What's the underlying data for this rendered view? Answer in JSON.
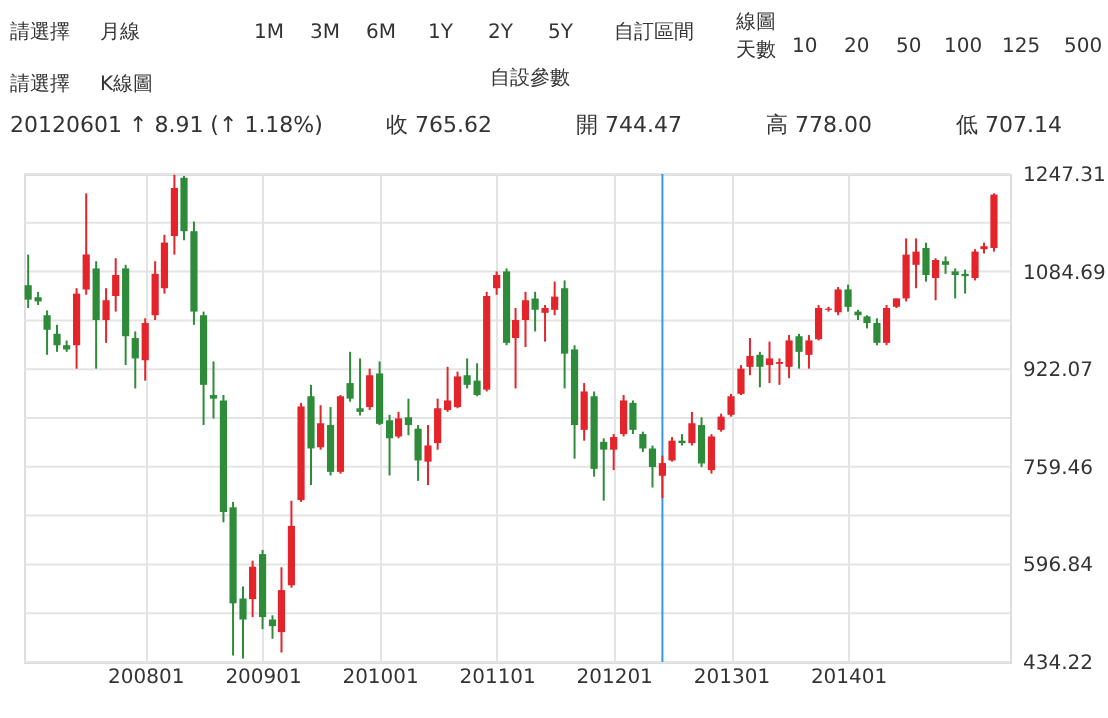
{
  "chart_data": {
    "type": "candlestick",
    "x": [
      "2007-01",
      "2007-02",
      "2007-03",
      "2007-04",
      "2007-05",
      "2007-06",
      "2007-07",
      "2007-08",
      "2007-09",
      "2007-10",
      "2007-11",
      "2007-12",
      "2008-01",
      "2008-02",
      "2008-03",
      "2008-04",
      "2008-05",
      "2008-06",
      "2008-07",
      "2008-08",
      "2008-09",
      "2008-10",
      "2008-11",
      "2008-12",
      "2009-01",
      "2009-02",
      "2009-03",
      "2009-04",
      "2009-05",
      "2009-06",
      "2009-07",
      "2009-08",
      "2009-09",
      "2009-10",
      "2009-11",
      "2009-12",
      "2010-01",
      "2010-02",
      "2010-03",
      "2010-04",
      "2010-05",
      "2010-06",
      "2010-07",
      "2010-08",
      "2010-09",
      "2010-10",
      "2010-11",
      "2010-12",
      "2011-01",
      "2011-02",
      "2011-03",
      "2011-04",
      "2011-05",
      "2011-06",
      "2011-07",
      "2011-08",
      "2011-09",
      "2011-10",
      "2011-11",
      "2011-12",
      "2012-01",
      "2012-02",
      "2012-03",
      "2012-04",
      "2012-05",
      "2012-06",
      "2012-07",
      "2012-08",
      "2012-09",
      "2012-10",
      "2012-11",
      "2012-12",
      "2013-01",
      "2013-02",
      "2013-03",
      "2013-04",
      "2013-05",
      "2013-06",
      "2013-07",
      "2013-08",
      "2013-09",
      "2013-10",
      "2013-11",
      "2013-12",
      "2014-01",
      "2014-02",
      "2014-03",
      "2014-04",
      "2014-05",
      "2014-06",
      "2014-07",
      "2014-08",
      "2014-09",
      "2014-10",
      "2014-11",
      "2014-12",
      "2015-01",
      "2015-02",
      "2015-03",
      "2015-04"
    ],
    "ohlc": [
      [
        1062,
        1113,
        1024,
        1038
      ],
      [
        1042,
        1051,
        1029,
        1035
      ],
      [
        1012,
        1020,
        946,
        988
      ],
      [
        981,
        996,
        951,
        962
      ],
      [
        962,
        970,
        951,
        955
      ],
      [
        962,
        1057,
        923,
        1048
      ],
      [
        1055,
        1215,
        1046,
        1113
      ],
      [
        1090,
        1102,
        923,
        1004
      ],
      [
        1004,
        1057,
        966,
        1037
      ],
      [
        1044,
        1107,
        1018,
        1079
      ],
      [
        1090,
        1096,
        929,
        977
      ],
      [
        974,
        985,
        890,
        940
      ],
      [
        937,
        1007,
        903,
        999
      ],
      [
        1012,
        1102,
        1004,
        1081
      ],
      [
        1057,
        1146,
        1048,
        1133
      ],
      [
        1144,
        1246,
        1113,
        1224
      ],
      [
        1241,
        1244,
        1137,
        1152
      ],
      [
        1152,
        1168,
        996,
        1018
      ],
      [
        1012,
        1018,
        829,
        896
      ],
      [
        879,
        935,
        840,
        873
      ],
      [
        870,
        879,
        667,
        684
      ],
      [
        692,
        701,
        445,
        532
      ],
      [
        540,
        560,
        440,
        505
      ],
      [
        539,
        603,
        509,
        593
      ],
      [
        614,
        621,
        489,
        509
      ],
      [
        505,
        512,
        473,
        494
      ],
      [
        484,
        592,
        450,
        554
      ],
      [
        562,
        703,
        558,
        661
      ],
      [
        704,
        866,
        701,
        860
      ],
      [
        877,
        896,
        729,
        790
      ],
      [
        792,
        862,
        788,
        832
      ],
      [
        829,
        859,
        745,
        751
      ],
      [
        751,
        879,
        748,
        877
      ],
      [
        899,
        951,
        868,
        873
      ],
      [
        857,
        940,
        845,
        851
      ],
      [
        859,
        923,
        854,
        912
      ],
      [
        915,
        935,
        829,
        831
      ],
      [
        837,
        846,
        745,
        807
      ],
      [
        810,
        851,
        807,
        840
      ],
      [
        842,
        873,
        812,
        829
      ],
      [
        823,
        829,
        736,
        770
      ],
      [
        768,
        829,
        729,
        795
      ],
      [
        799,
        873,
        788,
        857
      ],
      [
        854,
        926,
        851,
        870
      ],
      [
        859,
        918,
        857,
        910
      ],
      [
        912,
        940,
        890,
        896
      ],
      [
        903,
        932,
        877,
        879
      ],
      [
        888,
        1051,
        885,
        1044
      ],
      [
        1057,
        1085,
        1046,
        1079
      ],
      [
        1085,
        1090,
        962,
        966
      ],
      [
        974,
        1024,
        890,
        1004
      ],
      [
        1004,
        1051,
        959,
        1037
      ],
      [
        1040,
        1051,
        985,
        1021
      ],
      [
        1016,
        1029,
        968,
        1024
      ],
      [
        1021,
        1068,
        1012,
        1043
      ],
      [
        1057,
        1070,
        890,
        948
      ],
      [
        955,
        962,
        773,
        829
      ],
      [
        821,
        899,
        803,
        885
      ],
      [
        877,
        885,
        743,
        756
      ],
      [
        801,
        807,
        703,
        788
      ],
      [
        788,
        814,
        754,
        809
      ],
      [
        814,
        879,
        810,
        870
      ],
      [
        866,
        870,
        814,
        821
      ],
      [
        814,
        818,
        784,
        790
      ],
      [
        790,
        795,
        725,
        759
      ],
      [
        744.47,
        778.0,
        707.14,
        765.62
      ],
      [
        770,
        809,
        768,
        803
      ],
      [
        803,
        814,
        795,
        799
      ],
      [
        799,
        851,
        795,
        832
      ],
      [
        829,
        842,
        759,
        765
      ],
      [
        754,
        814,
        748,
        810
      ],
      [
        821,
        848,
        818,
        843
      ],
      [
        846,
        881,
        843,
        877
      ],
      [
        881,
        929,
        879,
        923
      ],
      [
        926,
        974,
        912,
        944
      ],
      [
        946,
        951,
        892,
        926
      ],
      [
        929,
        968,
        899,
        940
      ],
      [
        931,
        940,
        896,
        934
      ],
      [
        926,
        979,
        907,
        970
      ],
      [
        977,
        981,
        923,
        951
      ],
      [
        946,
        979,
        923,
        970
      ],
      [
        972,
        1029,
        970,
        1024
      ],
      [
        1021,
        1026,
        1018,
        1023
      ],
      [
        1017,
        1059,
        1012,
        1055
      ],
      [
        1055,
        1063,
        1018,
        1026
      ],
      [
        1018,
        1021,
        1004,
        1012
      ],
      [
        1010,
        1012,
        990,
        999
      ],
      [
        999,
        1007,
        962,
        966
      ],
      [
        966,
        1029,
        962,
        1024
      ],
      [
        1026,
        1040,
        1024,
        1040
      ],
      [
        1040,
        1140,
        1035,
        1113
      ],
      [
        1096,
        1140,
        1057,
        1118
      ],
      [
        1124,
        1133,
        1068,
        1079
      ],
      [
        1074,
        1107,
        1037,
        1104
      ],
      [
        1102,
        1110,
        1081,
        1096
      ],
      [
        1085,
        1090,
        1040,
        1079
      ],
      [
        1081,
        1088,
        1048,
        1077
      ],
      [
        1074,
        1122,
        1070,
        1118
      ],
      [
        1122,
        1133,
        1115,
        1127
      ],
      [
        1124,
        1215,
        1118,
        1213
      ]
    ],
    "colors": [
      "#2e8b3a",
      "#2e8b3a",
      "#2e8b3a",
      "#2e8b3a",
      "#2e8b3a",
      "#e3242b",
      "#e3242b",
      "#2e8b3a",
      "#e3242b",
      "#e3242b",
      "#2e8b3a",
      "#2e8b3a",
      "#e3242b",
      "#e3242b",
      "#e3242b",
      "#e3242b",
      "#2e8b3a",
      "#2e8b3a",
      "#2e8b3a",
      "#2e8b3a",
      "#2e8b3a",
      "#2e8b3a",
      "#2e8b3a",
      "#e3242b",
      "#2e8b3a",
      "#2e8b3a",
      "#e3242b",
      "#e3242b",
      "#e3242b",
      "#2e8b3a",
      "#e3242b",
      "#2e8b3a",
      "#e3242b",
      "#2e8b3a",
      "#2e8b3a",
      "#e3242b",
      "#2e8b3a",
      "#2e8b3a",
      "#e3242b",
      "#2e8b3a",
      "#2e8b3a",
      "#e3242b",
      "#e3242b",
      "#e3242b",
      "#e3242b",
      "#2e8b3a",
      "#2e8b3a",
      "#e3242b",
      "#e3242b",
      "#2e8b3a",
      "#e3242b",
      "#e3242b",
      "#2e8b3a",
      "#e3242b",
      "#e3242b",
      "#2e8b3a",
      "#2e8b3a",
      "#e3242b",
      "#2e8b3a",
      "#2e8b3a",
      "#e3242b",
      "#e3242b",
      "#2e8b3a",
      "#2e8b3a",
      "#2e8b3a",
      "#e3242b",
      "#e3242b",
      "#2e8b3a",
      "#e3242b",
      "#2e8b3a",
      "#e3242b",
      "#e3242b",
      "#e3242b",
      "#e3242b",
      "#e3242b",
      "#2e8b3a",
      "#e3242b",
      "#e3242b",
      "#e3242b",
      "#2e8b3a",
      "#e3242b",
      "#e3242b",
      "#e3242b",
      "#e3242b",
      "#2e8b3a",
      "#2e8b3a",
      "#2e8b3a",
      "#2e8b3a",
      "#e3242b",
      "#e3242b",
      "#e3242b",
      "#e3242b",
      "#2e8b3a",
      "#e3242b",
      "#2e8b3a",
      "#2e8b3a",
      "#2e8b3a",
      "#e3242b",
      "#e3242b",
      "#e3242b"
    ],
    "xlim": [
      "2006-12-19",
      "2015-05-21"
    ],
    "xticks": [
      {
        "value": "2008-01",
        "label": "200801"
      },
      {
        "value": "2009-01",
        "label": "200901"
      },
      {
        "value": "2010-01",
        "label": "201001"
      },
      {
        "value": "2011-01",
        "label": "201101"
      },
      {
        "value": "2012-01",
        "label": "201201"
      },
      {
        "value": "2013-01",
        "label": "201301"
      },
      {
        "value": "2014-01",
        "label": "201401"
      }
    ],
    "ylim": [
      434.22,
      1247.31
    ],
    "yticks": [
      434.22,
      {
        "value": 515.53,
        "label": null
      },
      596.84,
      {
        "value": 678.15,
        "label": null
      },
      759.46,
      {
        "value": 840.77,
        "label": null
      },
      922.07,
      {
        "value": 1003.38,
        "label": null
      },
      1084.69,
      {
        "value": 1166.0,
        "label": null
      },
      1247.31
    ],
    "grid": true,
    "ref_lines": [
      {
        "axis": "x",
        "value": "2012-06",
        "color": "#3399ee"
      }
    ],
    "annotations": [
      "請選擇",
      "月線",
      "1M",
      "3M",
      "6M",
      "1Y",
      "2Y",
      "5Y",
      "自訂區間",
      "線圖",
      "天數",
      "10",
      "20",
      "50",
      "100",
      "125",
      "500",
      "請選擇",
      "K線圖",
      "自設參數",
      "20120601  ↑ 8.91 (↑ 1.18%)",
      "收 765.62",
      "開 744.47",
      "高 778.00",
      "低 707.14"
    ]
  }
}
